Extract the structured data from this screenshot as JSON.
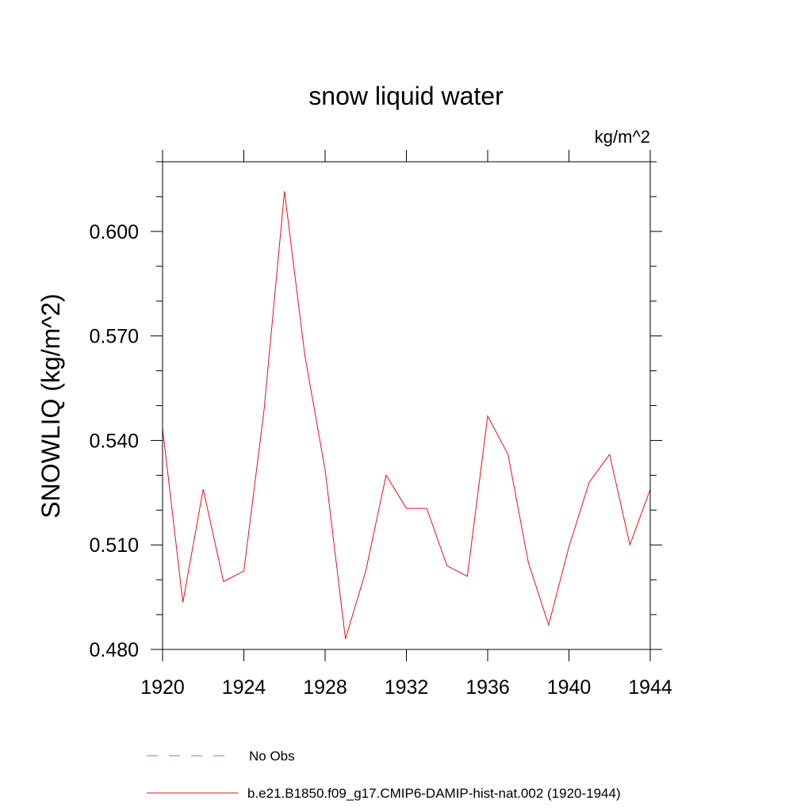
{
  "chart_data": {
    "type": "line",
    "title": "snow liquid water",
    "units_label": "kg/m^2",
    "ylabel": "SNOWLIQ  (kg/m^2)",
    "xlabel": "",
    "xlim": [
      1920,
      1944
    ],
    "ylim": [
      0.48,
      0.62
    ],
    "x_ticks": [
      1920,
      1924,
      1928,
      1932,
      1936,
      1940,
      1944
    ],
    "x_tick_labels": [
      "1920",
      "1924",
      "1928",
      "1932",
      "1936",
      "1940",
      "1944"
    ],
    "y_ticks": [
      0.48,
      0.51,
      0.54,
      0.57,
      0.6
    ],
    "y_tick_labels": [
      "0.480",
      "0.510",
      "0.540",
      "0.570",
      "0.600"
    ],
    "grid": false,
    "legend_position": "bottom",
    "series": [
      {
        "name": "No Obs",
        "color": "#7777cc",
        "style": "dashed",
        "x": [],
        "values": []
      },
      {
        "name": "b.e21.B1850.f09_g17.CMIP6-DAMIP-hist-nat.002 (1920-1944)",
        "color": "#e8101a",
        "style": "solid",
        "x": [
          1920,
          1921,
          1922,
          1923,
          1924,
          1925,
          1926,
          1927,
          1928,
          1929,
          1930,
          1931,
          1932,
          1933,
          1934,
          1935,
          1936,
          1937,
          1938,
          1939,
          1940,
          1941,
          1942,
          1943,
          1944
        ],
        "values": [
          0.5435,
          0.4935,
          0.526,
          0.4995,
          0.5025,
          0.549,
          0.6115,
          0.5645,
          0.5315,
          0.483,
          0.5025,
          0.53,
          0.5205,
          0.5205,
          0.504,
          0.501,
          0.547,
          0.536,
          0.505,
          0.487,
          0.5095,
          0.528,
          0.536,
          0.51,
          0.526
        ]
      }
    ]
  }
}
